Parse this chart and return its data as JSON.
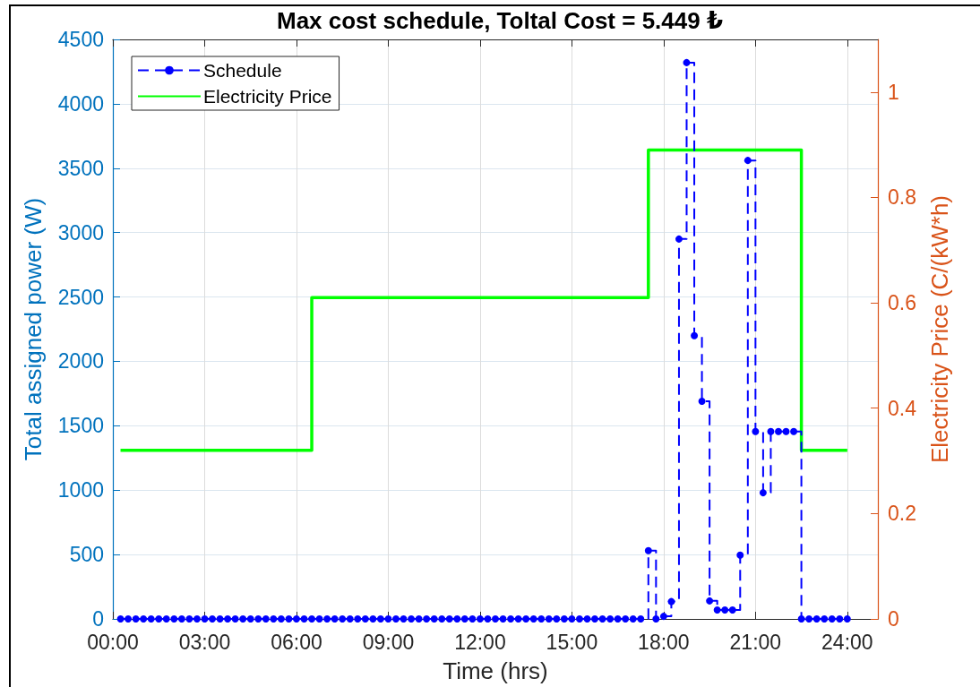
{
  "chart_data": {
    "type": "step",
    "title": "Max cost schedule, Toltal Cost = 5.449 ₺",
    "xlabel": "Time (hrs)",
    "ylabel": "Total assigned power (W)",
    "y2label": "Electricity Price (C/(kW*h)",
    "xlim": [
      0,
      25
    ],
    "xticks": [
      {
        "value": 0,
        "label": "00:00"
      },
      {
        "value": 3,
        "label": "03:00"
      },
      {
        "value": 6,
        "label": "06:00"
      },
      {
        "value": 9,
        "label": "09:00"
      },
      {
        "value": 12,
        "label": "12:00"
      },
      {
        "value": 15,
        "label": "15:00"
      },
      {
        "value": 18,
        "label": "18:00"
      },
      {
        "value": 21,
        "label": "21:00"
      },
      {
        "value": 24,
        "label": "24:00"
      }
    ],
    "ylim": [
      0,
      4500
    ],
    "yticks": [
      0,
      500,
      1000,
      1500,
      2000,
      2500,
      3000,
      3500,
      4000,
      4500
    ],
    "y2lim": [
      0,
      1.1
    ],
    "y2ticks": [
      0,
      0.2,
      0.4,
      0.6,
      0.8,
      1
    ],
    "grid": true,
    "legend": "top left",
    "series": [
      {
        "name": "Schedule",
        "color": "#0000ff",
        "marker": "circle",
        "line_style": "dashed",
        "x": [
          0.25,
          0.5,
          0.75,
          1,
          1.25,
          1.5,
          1.75,
          2,
          2.25,
          2.5,
          2.75,
          3,
          3.25,
          3.5,
          3.75,
          4,
          4.25,
          4.5,
          4.75,
          5,
          5.25,
          5.5,
          5.75,
          6,
          6.25,
          6.5,
          6.75,
          7,
          7.25,
          7.5,
          7.75,
          8,
          8.25,
          8.5,
          8.75,
          9,
          9.25,
          9.5,
          9.75,
          10,
          10.25,
          10.5,
          10.75,
          11,
          11.25,
          11.5,
          11.75,
          12,
          12.25,
          12.5,
          12.75,
          13,
          13.25,
          13.5,
          13.75,
          14,
          14.25,
          14.5,
          14.75,
          15,
          15.25,
          15.5,
          15.75,
          16,
          16.25,
          16.5,
          16.75,
          17,
          17.25,
          17.5,
          17.75,
          18,
          18.25,
          18.5,
          18.75,
          19,
          19.25,
          19.5,
          19.75,
          20,
          20.25,
          20.5,
          20.75,
          21,
          21.25,
          21.5,
          21.75,
          22,
          22.25,
          22.5,
          22.75,
          23,
          23.25,
          23.5,
          23.75,
          24
        ],
        "values": [
          0,
          0,
          0,
          0,
          0,
          0,
          0,
          0,
          0,
          0,
          0,
          0,
          0,
          0,
          0,
          0,
          0,
          0,
          0,
          0,
          0,
          0,
          0,
          0,
          0,
          0,
          0,
          0,
          0,
          0,
          0,
          0,
          0,
          0,
          0,
          0,
          0,
          0,
          0,
          0,
          0,
          0,
          0,
          0,
          0,
          0,
          0,
          0,
          0,
          0,
          0,
          0,
          0,
          0,
          0,
          0,
          0,
          0,
          0,
          0,
          0,
          0,
          0,
          0,
          0,
          0,
          0,
          0,
          0,
          530,
          0,
          20,
          135,
          2950,
          4320,
          2200,
          1690,
          140,
          70,
          70,
          70,
          495,
          3560,
          1455,
          980,
          1455,
          1455,
          1455,
          1455,
          0,
          0,
          0,
          0,
          0,
          0,
          0
        ]
      },
      {
        "name": "Electricity Price",
        "color": "#00ff00",
        "axis": "y2",
        "marker": "none",
        "line_style": "solid",
        "x": [
          0.25,
          6.5,
          17.5,
          22.5,
          24
        ],
        "values": [
          0.32,
          0.61,
          0.89,
          0.32,
          0.32
        ]
      }
    ]
  }
}
